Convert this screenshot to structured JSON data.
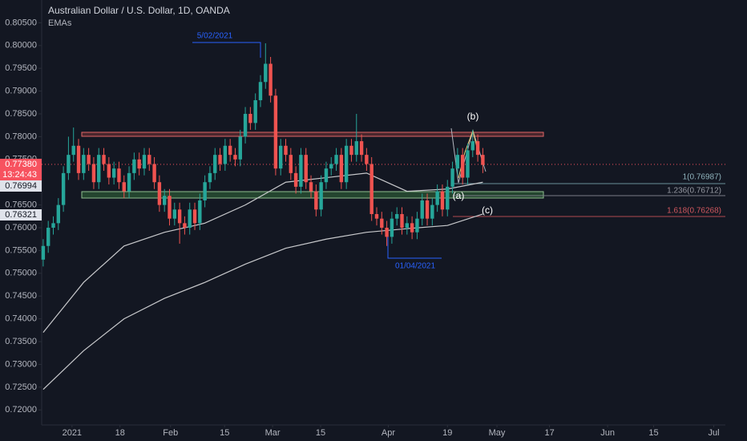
{
  "chart_data": {
    "type": "candlestick",
    "title": "Australian Dollar / U.S. Dollar, 1D, OANDA",
    "subtitle": "EMAs",
    "up_color": "#26a69a",
    "down_color": "#ef5350",
    "open": [
      0.753,
      0.756,
      0.76,
      0.761,
      0.765,
      0.772,
      0.776,
      0.778,
      0.772,
      0.776,
      0.774,
      0.77,
      0.776,
      0.774,
      0.771,
      0.773,
      0.77,
      0.768,
      0.772,
      0.775,
      0.773,
      0.776,
      0.774,
      0.77,
      0.765,
      0.767,
      0.762,
      0.764,
      0.761,
      0.76,
      0.764,
      0.761,
      0.766,
      0.77,
      0.772,
      0.776,
      0.774,
      0.778,
      0.776,
      0.775,
      0.78,
      0.785,
      0.783,
      0.788,
      0.792,
      0.796,
      0.789,
      0.773,
      0.778,
      0.776,
      0.772,
      0.769,
      0.776,
      0.77,
      0.768,
      0.764,
      0.77,
      0.773,
      0.774,
      0.776,
      0.77,
      0.778,
      0.776,
      0.779,
      0.776,
      0.774,
      0.763,
      0.762,
      0.76,
      0.758,
      0.762,
      0.763,
      0.76,
      0.761,
      0.759,
      0.762,
      0.766,
      0.762,
      0.765,
      0.768,
      0.764,
      0.769,
      0.773,
      0.776,
      0.771,
      0.777,
      0.779,
      0.776
    ],
    "high": [
      0.7575,
      0.7615,
      0.7625,
      0.7665,
      0.7735,
      0.78,
      0.782,
      0.7795,
      0.7775,
      0.7775,
      0.7755,
      0.7775,
      0.7775,
      0.7755,
      0.7745,
      0.7745,
      0.7715,
      0.7735,
      0.7765,
      0.7765,
      0.7775,
      0.7775,
      0.7755,
      0.7715,
      0.7685,
      0.7685,
      0.7655,
      0.7655,
      0.7625,
      0.7655,
      0.7655,
      0.7675,
      0.7715,
      0.7735,
      0.7775,
      0.7775,
      0.7795,
      0.7795,
      0.7775,
      0.7815,
      0.7865,
      0.7865,
      0.7895,
      0.7935,
      0.8005,
      0.7975,
      0.7905,
      0.7795,
      0.7795,
      0.7775,
      0.7735,
      0.7775,
      0.7775,
      0.7715,
      0.7695,
      0.7715,
      0.7745,
      0.7755,
      0.7775,
      0.7775,
      0.7795,
      0.7795,
      0.785,
      0.7805,
      0.7775,
      0.7755,
      0.7645,
      0.7635,
      0.7615,
      0.7635,
      0.7645,
      0.7645,
      0.7625,
      0.7625,
      0.7635,
      0.7675,
      0.7675,
      0.7665,
      0.7695,
      0.7695,
      0.7705,
      0.7745,
      0.7775,
      0.7775,
      0.7785,
      0.7815,
      0.7805,
      0.7775
    ],
    "low": [
      0.7515,
      0.7545,
      0.7585,
      0.7595,
      0.7635,
      0.7705,
      0.7745,
      0.7705,
      0.7705,
      0.7725,
      0.7685,
      0.7685,
      0.7725,
      0.7695,
      0.7695,
      0.7685,
      0.7665,
      0.7665,
      0.7705,
      0.7715,
      0.7715,
      0.7725,
      0.7685,
      0.7635,
      0.7635,
      0.7605,
      0.7605,
      0.7565,
      0.7585,
      0.7585,
      0.7595,
      0.7595,
      0.7645,
      0.7685,
      0.7705,
      0.7725,
      0.7725,
      0.7745,
      0.7735,
      0.7735,
      0.7785,
      0.7815,
      0.7815,
      0.7865,
      0.7905,
      0.7875,
      0.7715,
      0.7715,
      0.7745,
      0.7705,
      0.7675,
      0.7675,
      0.7685,
      0.7665,
      0.7625,
      0.7625,
      0.7685,
      0.7715,
      0.7725,
      0.7685,
      0.7685,
      0.7745,
      0.7745,
      0.7745,
      0.7725,
      0.7615,
      0.7605,
      0.7585,
      0.756,
      0.7565,
      0.7605,
      0.7585,
      0.7585,
      0.7575,
      0.7575,
      0.7605,
      0.7605,
      0.7605,
      0.7635,
      0.7625,
      0.7625,
      0.7675,
      0.7715,
      0.7695,
      0.7695,
      0.7755,
      0.7745,
      0.772
    ],
    "close": [
      0.756,
      0.76,
      0.761,
      0.765,
      0.772,
      0.776,
      0.778,
      0.772,
      0.776,
      0.774,
      0.77,
      0.776,
      0.774,
      0.771,
      0.773,
      0.77,
      0.768,
      0.772,
      0.775,
      0.773,
      0.776,
      0.774,
      0.77,
      0.765,
      0.767,
      0.762,
      0.764,
      0.761,
      0.76,
      0.764,
      0.761,
      0.766,
      0.77,
      0.772,
      0.776,
      0.774,
      0.778,
      0.776,
      0.775,
      0.78,
      0.785,
      0.783,
      0.788,
      0.792,
      0.796,
      0.789,
      0.773,
      0.778,
      0.776,
      0.772,
      0.769,
      0.776,
      0.77,
      0.768,
      0.764,
      0.77,
      0.773,
      0.774,
      0.776,
      0.77,
      0.778,
      0.776,
      0.779,
      0.776,
      0.774,
      0.763,
      0.762,
      0.76,
      0.758,
      0.762,
      0.763,
      0.76,
      0.761,
      0.759,
      0.762,
      0.766,
      0.762,
      0.765,
      0.768,
      0.764,
      0.769,
      0.773,
      0.776,
      0.771,
      0.777,
      0.779,
      0.776,
      0.7738
    ],
    "ema_x": [
      0,
      8,
      16,
      24,
      32,
      40,
      48,
      56,
      64,
      72,
      80,
      87
    ],
    "series": [
      {
        "color": "#c8c9cc",
        "values": [
          0.737,
          0.748,
          0.756,
          0.759,
          0.761,
          0.765,
          0.77,
          0.771,
          0.772,
          0.768,
          0.7685,
          0.77
        ]
      },
      {
        "color": "#c8c9cc",
        "values": [
          0.7245,
          0.733,
          0.74,
          0.7445,
          0.748,
          0.752,
          0.7555,
          0.7575,
          0.759,
          0.7598,
          0.7605,
          0.763
        ]
      }
    ],
    "xlim": [
      -0.3,
      135
    ],
    "xticks": [
      {
        "value": 5.7,
        "label": "2021"
      },
      {
        "value": 15.2,
        "label": "18"
      },
      {
        "value": 25.2,
        "label": "Feb"
      },
      {
        "value": 35.9,
        "label": "15"
      },
      {
        "value": 45.4,
        "label": "Mar"
      },
      {
        "value": 54.9,
        "label": "15"
      },
      {
        "value": 68.3,
        "label": "Apr"
      },
      {
        "value": 80,
        "label": "19"
      },
      {
        "value": 89.8,
        "label": "May"
      },
      {
        "value": 100.2,
        "label": "17"
      },
      {
        "value": 111.7,
        "label": "Jun"
      },
      {
        "value": 120.8,
        "label": "15"
      },
      {
        "value": 132.7,
        "label": "Jul"
      }
    ],
    "ylim": [
      0.7167,
      0.81
    ],
    "yticks": [
      {
        "value": 0.72,
        "label": "0.72000"
      },
      {
        "value": 0.725,
        "label": "0.72500"
      },
      {
        "value": 0.73,
        "label": "0.73000"
      },
      {
        "value": 0.735,
        "label": "0.73500"
      },
      {
        "value": 0.74,
        "label": "0.74000"
      },
      {
        "value": 0.745,
        "label": "0.74500"
      },
      {
        "value": 0.75,
        "label": "0.75000"
      },
      {
        "value": 0.755,
        "label": "0.75500"
      },
      {
        "value": 0.76,
        "label": "0.76000"
      },
      {
        "value": 0.765,
        "label": "0.76500"
      },
      {
        "value": 0.77,
        "label": "0.77000"
      },
      {
        "value": 0.775,
        "label": "0.77500"
      },
      {
        "value": 0.78,
        "label": "0.78000"
      },
      {
        "value": 0.785,
        "label": "0.78500"
      },
      {
        "value": 0.79,
        "label": "0.79000"
      },
      {
        "value": 0.795,
        "label": "0.79500"
      },
      {
        "value": 0.8,
        "label": "0.80000"
      },
      {
        "value": 0.805,
        "label": "0.80500"
      }
    ],
    "price_tags": {
      "last": "0.77380",
      "countdown": "13:24:43",
      "ema_short": "0.76994",
      "ema_long": "0.76321"
    },
    "annotations": {
      "high_date": "5/02/2021",
      "low_date": "01/04/2021",
      "wave_a": "(a)",
      "wave_b": "(b)",
      "wave_c": "(c)",
      "fib_1": "1(0.76987)",
      "fib_1236": "1.236(0.76712)",
      "fib_1618": "1.618(0.76268)"
    }
  }
}
